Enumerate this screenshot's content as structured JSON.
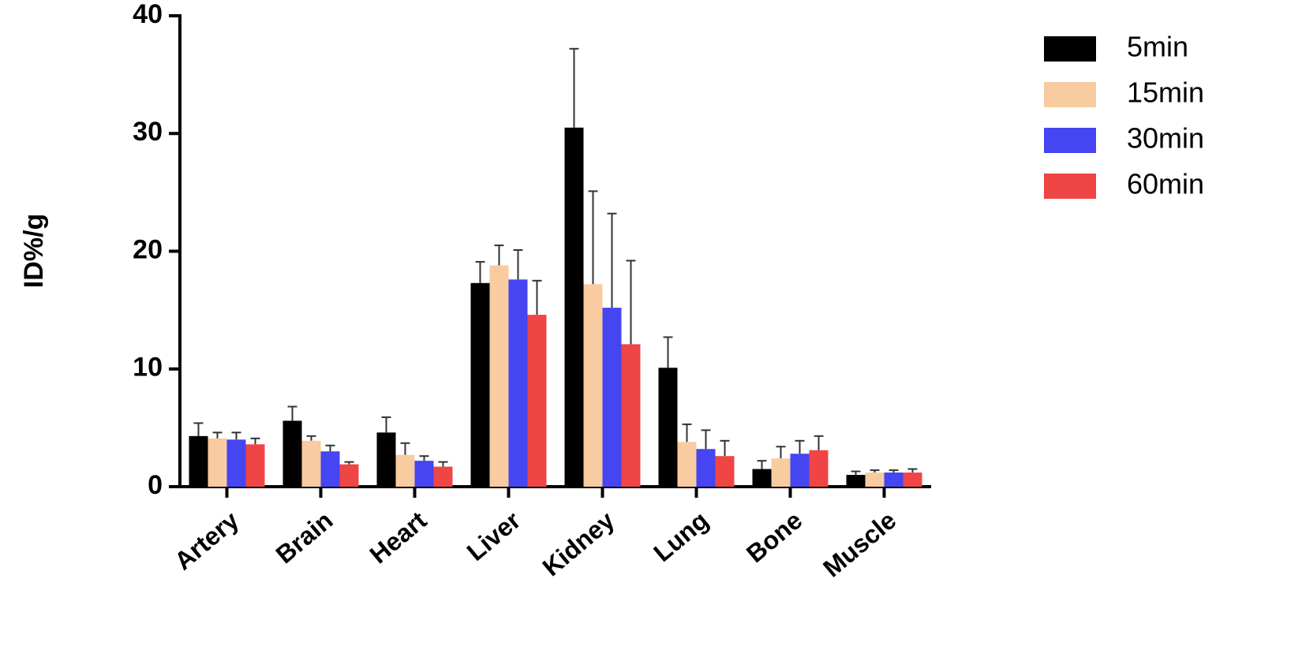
{
  "chart_data": {
    "type": "bar",
    "y_label": "ID%/g",
    "categories": [
      "Artery",
      "Brain",
      "Heart",
      "Liver",
      "Kidney",
      "Lung",
      "Bone",
      "Muscle"
    ],
    "series": [
      {
        "name": "5min",
        "color": "#000000",
        "values": [
          4.3,
          5.6,
          4.6,
          17.3,
          30.5,
          10.1,
          1.5,
          1.0
        ],
        "errors": [
          1.1,
          1.2,
          1.3,
          1.8,
          6.7,
          2.6,
          0.7,
          0.3
        ]
      },
      {
        "name": "15min",
        "color": "#f8cba0",
        "values": [
          4.1,
          3.9,
          2.7,
          18.8,
          17.2,
          3.8,
          2.4,
          1.2
        ],
        "errors": [
          0.5,
          0.4,
          1.0,
          1.7,
          7.9,
          1.5,
          1.0,
          0.2
        ]
      },
      {
        "name": "30min",
        "color": "#4545f2",
        "values": [
          4.0,
          3.0,
          2.2,
          17.6,
          15.2,
          3.2,
          2.8,
          1.2
        ],
        "errors": [
          0.6,
          0.5,
          0.4,
          2.5,
          8.0,
          1.6,
          1.1,
          0.2
        ]
      },
      {
        "name": "60min",
        "color": "#f04545",
        "values": [
          3.6,
          1.9,
          1.7,
          14.6,
          12.1,
          2.6,
          3.1,
          1.2
        ],
        "errors": [
          0.5,
          0.2,
          0.4,
          2.9,
          7.1,
          1.3,
          1.2,
          0.3
        ]
      }
    ],
    "ylim": [
      0,
      40
    ],
    "yticks": [
      0,
      10,
      20,
      30,
      40
    ],
    "legend": "right"
  }
}
